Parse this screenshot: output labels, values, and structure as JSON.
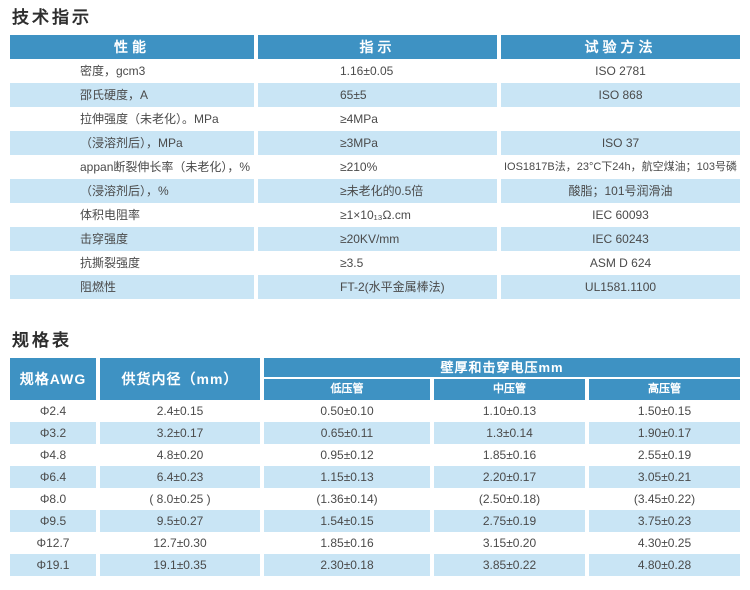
{
  "page": {
    "section1_title": "技术指示",
    "section2_title": "规格表"
  },
  "colors": {
    "header_blue": "#3e92c3",
    "row_light_blue": "#c9e5f5",
    "header_text": "#ffffff",
    "body_text": "#4a4a4a"
  },
  "tech_table": {
    "columns": [
      "性能",
      "指示",
      "试验方法"
    ],
    "rows": [
      {
        "property": "密度，gcm3",
        "value": "1.16±0.05",
        "method": "ISO 2781"
      },
      {
        "property": "邵氏硬度，A",
        "value": "65±5",
        "method": "ISO 868"
      },
      {
        "property": "拉伸强度（未老化）。MPa",
        "value": "≥4MPa",
        "method": ""
      },
      {
        "property": "（浸溶剂后），MPa",
        "value": "≥3MPa",
        "method": "ISO 37"
      },
      {
        "property": "appan断裂伸长率（未老化），%",
        "value": "≥210%",
        "method": "IOS1817B法，23°C下24h，航空煤油；103号磷"
      },
      {
        "property": "（浸溶剂后），%",
        "value": "≥未老化的0.5倍",
        "method": "酸脂；101号润滑油"
      },
      {
        "property": "体积电阻率",
        "value": "≥1×10₁₃Ω.cm",
        "method": "IEC 60093"
      },
      {
        "property": "击穿强度",
        "value": "≥20KV/mm",
        "method": "IEC 60243"
      },
      {
        "property": "抗撕裂强度",
        "value": "≥3.5",
        "method": "ASM D 624"
      },
      {
        "property": "阻燃性",
        "value": "FT-2(水平金属棒法)",
        "method": "UL1581.1100"
      }
    ]
  },
  "spec_table": {
    "col_awg": "规格AWG",
    "col_inner": "供货内径（mm）",
    "group_header": "壁厚和击穿电压mm",
    "sub_columns": [
      "低压管",
      "中压管",
      "高压管"
    ],
    "rows": [
      {
        "awg": "Φ2.4",
        "inner": "2.4±0.15",
        "low": "0.50±0.10",
        "mid": "1.10±0.13",
        "high": "1.50±0.15"
      },
      {
        "awg": "Φ3.2",
        "inner": "3.2±0.17",
        "low": "0.65±0.11",
        "mid": "1.3±0.14",
        "high": "1.90±0.17"
      },
      {
        "awg": "Φ4.8",
        "inner": "4.8±0.20",
        "low": "0.95±0.12",
        "mid": "1.85±0.16",
        "high": "2.55±0.19"
      },
      {
        "awg": "Φ6.4",
        "inner": "6.4±0.23",
        "low": "1.15±0.13",
        "mid": "2.20±0.17",
        "high": "3.05±0.21"
      },
      {
        "awg": "Φ8.0",
        "inner": "( 8.0±0.25 )",
        "low": "(1.36±0.14)",
        "mid": "(2.50±0.18)",
        "high": "(3.45±0.22)"
      },
      {
        "awg": "Φ9.5",
        "inner": "9.5±0.27",
        "low": "1.54±0.15",
        "mid": "2.75±0.19",
        "high": "3.75±0.23"
      },
      {
        "awg": "Φ12.7",
        "inner": "12.7±0.30",
        "low": "1.85±0.16",
        "mid": "3.15±0.20",
        "high": "4.30±0.25"
      },
      {
        "awg": "Φ19.1",
        "inner": "19.1±0.35",
        "low": "2.30±0.18",
        "mid": "3.85±0.22",
        "high": "4.80±0.28"
      }
    ]
  }
}
